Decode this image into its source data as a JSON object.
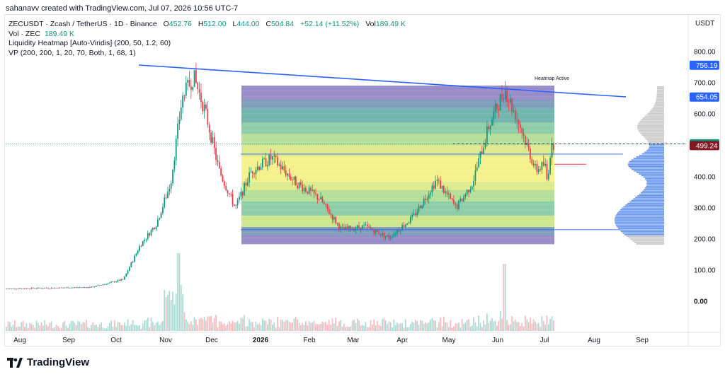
{
  "credit": "sahanavv created with TradingView.com, Jul 07, 2026 10:56 UTC-7",
  "legend": {
    "symbol": "ZECUSDT · Zcash / TetherUS · 1D · Binance",
    "open_label": "O",
    "open": "452.76",
    "high_label": "H",
    "high": "512.00",
    "low_label": "L",
    "low": "444.00",
    "close_label": "C",
    "close": "504.84",
    "change": "+52.14 (+11.52%)",
    "vol_label": "Vol",
    "vol": "189.49 K",
    "vol_zec_label": "Vol · ZEC",
    "vol_zec": "189.49 K",
    "heatmap": "Liquidity Heatmap [Auto-Viridis] (200, 50, 1.2, 60)",
    "vp": "VP (200, 200, 1, 20, 70, Both, 1, 68, 1)"
  },
  "heatmap_label": "Heatmap Active",
  "currency": "USDT",
  "brand": "TradingView",
  "colors": {
    "up": "#089981",
    "down": "#f23645",
    "trendline": "#2962ff",
    "price_tag": "#2962ff",
    "close_tag": "#089981",
    "poc_tag": "#801922"
  },
  "chart_data": {
    "type": "candlestick",
    "x_ticks": [
      "Aug",
      "Sep",
      "Oct",
      "Nov",
      "Dec",
      "2026",
      "Feb",
      "Mar",
      "Apr",
      "May",
      "Jun",
      "Jul",
      "Aug",
      "Sep"
    ],
    "y_ticks": [
      "800.00",
      "700.00",
      "600.00",
      "400.00",
      "300.00",
      "200.00",
      "100.00",
      "0.00"
    ],
    "price_tags": [
      {
        "label": "756.19",
        "value": 756.19,
        "kind": "level"
      },
      {
        "label": "654.05",
        "value": 654.05,
        "kind": "level"
      },
      {
        "label": "504.84",
        "value": 504.84,
        "kind": "close"
      },
      {
        "label": "499.24",
        "value": 499.24,
        "kind": "poc"
      }
    ],
    "ylim": [
      0,
      860
    ],
    "path": [
      [
        "Aug",
        40
      ],
      [
        "Sep",
        45
      ],
      [
        "Oct",
        70
      ],
      [
        "Oct",
        180
      ],
      [
        "Oct",
        250
      ],
      [
        "Nov",
        380
      ],
      [
        "Nov",
        650
      ],
      [
        "Nov",
        720
      ],
      [
        "Nov",
        610
      ],
      [
        "Dec",
        420
      ],
      [
        "Dec",
        300
      ],
      [
        "Dec",
        420
      ],
      [
        "2026",
        460
      ],
      [
        "2026",
        380
      ],
      [
        "Feb",
        330
      ],
      [
        "Feb",
        230
      ],
      [
        "Mar",
        240
      ],
      [
        "Mar",
        205
      ],
      [
        "Apr",
        270
      ],
      [
        "Apr",
        390
      ],
      [
        "May",
        300
      ],
      [
        "May",
        380
      ],
      [
        "May",
        560
      ],
      [
        "Jun",
        680
      ],
      [
        "Jun",
        560
      ],
      [
        "Jun",
        420
      ],
      [
        "Jul",
        440
      ],
      [
        "Jul",
        380
      ],
      [
        "Jul",
        470
      ],
      [
        "Jul",
        505
      ]
    ]
  }
}
